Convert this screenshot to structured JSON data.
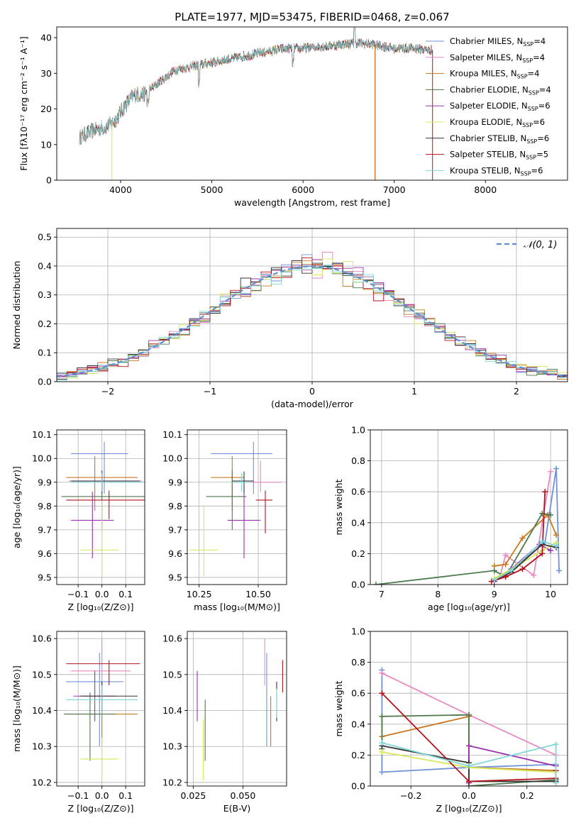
{
  "title": "PLATE=1977, MJD=53475, FIBERID=0468, z=0.067",
  "colors": {
    "chabrier_miles": "#6f93d6",
    "salpeter_miles": "#e78ac3",
    "kroupa_miles": "#c8781e",
    "chabrier_elodie": "#4c7a4c",
    "salpeter_elodie": "#9b30b0",
    "kroupa_elodie": "#d7e85a",
    "chabrier_stelib": "#333333",
    "salpeter_stelib": "#b3131b",
    "kroupa_stelib": "#7fd6d6",
    "normal_curve": "#5b8fd6",
    "grid": "#b0b0b0"
  },
  "chart_data": [
    {
      "id": "spectrum",
      "type": "line",
      "xlabel": "wavelength [Angstrom, rest frame]",
      "ylabel": "Flux [fλ10⁻¹⁷ erg cm⁻² s⁻¹ A⁻¹]",
      "xlim": [
        3300,
        8900
      ],
      "ylim": [
        0,
        43
      ],
      "xticks": [
        "4000",
        "5000",
        "6000",
        "7000",
        "8000"
      ],
      "yticks": [
        "0",
        "10",
        "20",
        "30",
        "40"
      ],
      "grid": false,
      "legend": "top-right",
      "legend_entries": [
        "Chabrier MILES, N_SSP=4",
        "Salpeter MILES, N_SSP=4",
        "Kroupa MILES, N_SSP=4",
        "Chabrier ELODIE, N_SSP=4",
        "Salpeter ELODIE, N_SSP=6",
        "Kroupa ELODIE, N_SSP=6",
        "Chabrier STELIB, N_SSP=6",
        "Salpeter STELIB, N_SSP=5",
        "Kroupa STELIB, N_SSP=6"
      ],
      "continuum": [
        [
          3550,
          12
        ],
        [
          3700,
          14
        ],
        [
          3850,
          15
        ],
        [
          3950,
          17
        ],
        [
          4050,
          21
        ],
        [
          4150,
          24
        ],
        [
          4250,
          24
        ],
        [
          4400,
          27
        ],
        [
          4600,
          31
        ],
        [
          4800,
          32
        ],
        [
          5000,
          33
        ],
        [
          5200,
          34
        ],
        [
          5400,
          35
        ],
        [
          5600,
          36
        ],
        [
          5800,
          37
        ],
        [
          6000,
          37
        ],
        [
          6200,
          37.5
        ],
        [
          6400,
          38
        ],
        [
          6600,
          38.5
        ],
        [
          6800,
          38
        ],
        [
          7000,
          37
        ],
        [
          7200,
          37
        ],
        [
          7400,
          36.5
        ]
      ]
    },
    {
      "id": "residuals",
      "type": "histogram",
      "xlabel": "(data-model)/error",
      "ylabel": "Normed distribution",
      "xlim": [
        -2.5,
        2.5
      ],
      "ylim": [
        0,
        0.53
      ],
      "xticks": [
        "−2",
        "−1",
        "0",
        "1",
        "2"
      ],
      "yticks": [
        "0.0",
        "0.1",
        "0.2",
        "0.3",
        "0.4",
        "0.5"
      ],
      "grid": true,
      "legend": "top-right",
      "legend_label": "𝒩(0, 1)",
      "bin_width": 0.1
    },
    {
      "id": "age_vs_z",
      "type": "errorbar",
      "xlabel": "Z [log₁₀(Z/Z⊙)]",
      "ylabel": "age  [log₁₀(age/yr)]",
      "xlim": [
        -0.19,
        0.18
      ],
      "ylim": [
        9.47,
        10.12
      ],
      "xticks": [
        "−0.1",
        "0.0",
        "0.1"
      ],
      "yticks": [
        "9.5",
        "9.6",
        "9.7",
        "9.8",
        "9.9",
        "10.0",
        "10.1"
      ],
      "grid": true,
      "points": [
        {
          "x": 0.01,
          "y": 10.02,
          "xerr": [
            0.14,
            0.1
          ],
          "yerr": [
            0.17,
            0.05
          ],
          "color": "chabrier_miles"
        },
        {
          "x": 0.0,
          "y": 9.905,
          "xerr": [
            0.14,
            0.17
          ],
          "yerr": [
            0.04,
            0.04
          ],
          "color": "salpeter_miles"
        },
        {
          "x": -0.03,
          "y": 9.92,
          "xerr": [
            0.12,
            0.18
          ],
          "yerr": [
            0.14,
            0.09
          ],
          "color": "kroupa_miles"
        },
        {
          "x": 0.0,
          "y": 9.84,
          "xerr": [
            0.17,
            0.2
          ],
          "yerr": [
            0.14,
            0.11
          ],
          "color": "chabrier_elodie"
        },
        {
          "x": -0.04,
          "y": 9.74,
          "xerr": [
            0.09,
            0.09
          ],
          "yerr": [
            0.16,
            0.12
          ],
          "color": "salpeter_elodie"
        },
        {
          "x": 0.0,
          "y": 9.615,
          "xerr": [
            0.09,
            0.07
          ],
          "yerr": [
            0.11,
            0.21
          ],
          "color": "kroupa_elodie"
        },
        {
          "x": 0.0,
          "y": 9.905,
          "xerr": [
            0.13,
            0.16
          ],
          "yerr": [
            0.05,
            0.04
          ],
          "color": "chabrier_stelib"
        },
        {
          "x": 0.03,
          "y": 9.825,
          "xerr": [
            0.18,
            0.15
          ],
          "yerr": [
            0.08,
            0.04
          ],
          "color": "salpeter_stelib"
        },
        {
          "x": 0.0,
          "y": 9.9,
          "xerr": [
            0.13,
            0.18
          ],
          "yerr": [
            0.04,
            0.04
          ],
          "color": "kroupa_stelib"
        }
      ]
    },
    {
      "id": "age_vs_mass",
      "type": "errorbar",
      "xlabel": "mass [log₁₀(M/M⊙)]",
      "ylabel": "",
      "xlim": [
        10.2,
        10.62
      ],
      "ylim": [
        9.47,
        10.12
      ],
      "xticks": [
        "10.25",
        "10.50"
      ],
      "yticks": [
        "9.5",
        "9.6",
        "9.7",
        "9.8",
        "9.9",
        "10.0",
        "10.1"
      ],
      "grid": true,
      "points": [
        {
          "x": 10.48,
          "y": 10.02,
          "xerr": [
            0.18,
            0.08
          ],
          "yerr": [
            0.17,
            0.05
          ],
          "color": "chabrier_miles"
        },
        {
          "x": 10.51,
          "y": 9.9,
          "xerr": [
            0.04,
            0.09
          ],
          "yerr": [
            0.04,
            0.09
          ],
          "color": "salpeter_miles"
        },
        {
          "x": 10.39,
          "y": 9.92,
          "xerr": [
            0.09,
            0.05
          ],
          "yerr": [
            0.14,
            0.09
          ],
          "color": "kroupa_miles"
        },
        {
          "x": 10.39,
          "y": 9.84,
          "xerr": [
            0.11,
            0.06
          ],
          "yerr": [
            0.14,
            0.11
          ],
          "color": "chabrier_elodie"
        },
        {
          "x": 10.44,
          "y": 9.74,
          "xerr": [
            0.07,
            0.07
          ],
          "yerr": [
            0.16,
            0.12
          ],
          "color": "salpeter_elodie"
        },
        {
          "x": 10.27,
          "y": 9.615,
          "xerr": [
            0.06,
            0.06
          ],
          "yerr": [
            0.11,
            0.19
          ],
          "color": "kroupa_elodie"
        },
        {
          "x": 10.44,
          "y": 9.905,
          "xerr": [
            0.05,
            0.04
          ],
          "yerr": [
            0.05,
            0.04
          ],
          "color": "chabrier_stelib"
        },
        {
          "x": 10.53,
          "y": 9.825,
          "xerr": [
            0.04,
            0.03
          ],
          "yerr": [
            0.14,
            0.04
          ],
          "color": "salpeter_stelib"
        },
        {
          "x": 10.43,
          "y": 9.9,
          "xerr": [
            0.04,
            0.04
          ],
          "yerr": [
            0.04,
            0.04
          ],
          "color": "kroupa_stelib"
        }
      ]
    },
    {
      "id": "mass_weight_vs_age",
      "type": "line",
      "xlabel": "age  [log₁₀(age/yr)]",
      "ylabel": "mass weight",
      "xlim": [
        6.8,
        10.3
      ],
      "ylim": [
        0,
        1.0
      ],
      "xticks": [
        "7",
        "8",
        "9",
        "10"
      ],
      "yticks": [
        "0.0",
        "0.2",
        "0.4",
        "0.6",
        "0.8",
        "1.0"
      ],
      "grid": true,
      "series": [
        {
          "color": "chabrier_miles",
          "x": [
            9.0,
            9.3,
            9.9,
            10.1,
            10.15
          ],
          "y": [
            0.02,
            0.1,
            0.27,
            0.75,
            0.09
          ]
        },
        {
          "color": "salpeter_miles",
          "x": [
            9.1,
            9.2,
            9.7,
            10.0
          ],
          "y": [
            0.05,
            0.19,
            0.06,
            0.73
          ]
        },
        {
          "color": "kroupa_miles",
          "x": [
            9.0,
            9.2,
            9.5,
            9.95,
            10.1
          ],
          "y": [
            0.12,
            0.13,
            0.3,
            0.45,
            0.32
          ]
        },
        {
          "color": "chabrier_elodie",
          "x": [
            6.9,
            9.0,
            9.2,
            9.85,
            10.0
          ],
          "y": [
            0.0,
            0.09,
            0.05,
            0.46,
            0.45
          ]
        },
        {
          "color": "salpeter_elodie",
          "x": [
            9.0,
            9.3,
            9.8,
            10.0
          ],
          "y": [
            0.02,
            0.1,
            0.26,
            0.22
          ]
        },
        {
          "color": "kroupa_elodie",
          "x": [
            9.0,
            9.4,
            9.85,
            10.1
          ],
          "y": [
            0.04,
            0.12,
            0.22,
            0.27
          ]
        },
        {
          "color": "chabrier_stelib",
          "x": [
            9.0,
            9.3,
            9.85,
            10.1
          ],
          "y": [
            0.03,
            0.08,
            0.26,
            0.24
          ]
        },
        {
          "color": "salpeter_stelib",
          "x": [
            8.95,
            9.2,
            9.5,
            9.85,
            9.9
          ],
          "y": [
            0.02,
            0.05,
            0.1,
            0.2,
            0.6
          ]
        },
        {
          "color": "kroupa_stelib",
          "x": [
            9.0,
            9.3,
            9.85,
            10.1
          ],
          "y": [
            0.03,
            0.09,
            0.28,
            0.25
          ]
        }
      ]
    },
    {
      "id": "mass_vs_z",
      "type": "errorbar",
      "xlabel": "Z [log₁₀(Z/Z⊙)]",
      "ylabel": "mass [log₁₀(M/M⊙)]",
      "xlim": [
        -0.19,
        0.18
      ],
      "ylim": [
        10.19,
        10.62
      ],
      "xticks": [
        "−0.1",
        "0.0",
        "0.1"
      ],
      "yticks": [
        "10.2",
        "10.3",
        "10.4",
        "10.5",
        "10.6"
      ],
      "grid": true,
      "points": [
        {
          "x": -0.01,
          "y": 10.48,
          "xerr": [
            0.14,
            0.1
          ],
          "yerr": [
            0.18,
            0.08
          ],
          "color": "chabrier_miles"
        },
        {
          "x": 0.0,
          "y": 10.51,
          "xerr": [
            0.13,
            0.12
          ],
          "yerr": [
            0.04,
            0.09
          ],
          "color": "salpeter_miles"
        },
        {
          "x": 0.0,
          "y": 10.39,
          "xerr": [
            0.15,
            0.15
          ],
          "yerr": [
            0.09,
            0.05
          ],
          "color": "kroupa_miles"
        },
        {
          "x": -0.05,
          "y": 10.39,
          "xerr": [
            0.11,
            0.11
          ],
          "yerr": [
            0.13,
            0.06
          ],
          "color": "chabrier_elodie"
        },
        {
          "x": -0.03,
          "y": 10.44,
          "xerr": [
            0.09,
            0.09
          ],
          "yerr": [
            0.07,
            0.07
          ],
          "color": "salpeter_elodie"
        },
        {
          "x": 0.0,
          "y": 10.265,
          "xerr": [
            0.09,
            0.07
          ],
          "yerr": [
            0.06,
            0.06
          ],
          "color": "kroupa_elodie"
        },
        {
          "x": 0.0,
          "y": 10.44,
          "xerr": [
            0.09,
            0.15
          ],
          "yerr": [
            0.05,
            0.04
          ],
          "color": "chabrier_stelib"
        },
        {
          "x": 0.03,
          "y": 10.53,
          "xerr": [
            0.18,
            0.13
          ],
          "yerr": [
            0.06,
            0.01
          ],
          "color": "salpeter_stelib"
        },
        {
          "x": 0.0,
          "y": 10.43,
          "xerr": [
            0.15,
            0.15
          ],
          "yerr": [
            0.04,
            0.04
          ],
          "color": "kroupa_stelib"
        }
      ]
    },
    {
      "id": "mass_vs_ebv",
      "type": "errorbar",
      "xlabel": "E(B-V)",
      "ylabel": "",
      "xlim": [
        0.022,
        0.072
      ],
      "ylim": [
        10.19,
        10.62
      ],
      "xticks": [
        "0.025",
        "0.050"
      ],
      "yticks": [
        "10.2",
        "10.3",
        "10.4",
        "10.5",
        "10.6"
      ],
      "grid": true,
      "points": [
        {
          "x": 0.062,
          "y": 10.48,
          "yerr": [
            0.18,
            0.08
          ],
          "color": "chabrier_miles"
        },
        {
          "x": 0.061,
          "y": 10.51,
          "yerr": [
            0.04,
            0.09
          ],
          "color": "salpeter_miles"
        },
        {
          "x": 0.064,
          "y": 10.39,
          "yerr": [
            0.09,
            0.05
          ],
          "color": "kroupa_miles"
        },
        {
          "x": 0.031,
          "y": 10.39,
          "yerr": [
            0.13,
            0.04
          ],
          "color": "chabrier_elodie"
        },
        {
          "x": 0.027,
          "y": 10.44,
          "yerr": [
            0.07,
            0.07
          ],
          "color": "salpeter_elodie"
        },
        {
          "x": 0.03,
          "y": 10.265,
          "yerr": [
            0.06,
            0.11
          ],
          "color": "kroupa_elodie"
        },
        {
          "x": 0.067,
          "y": 10.42,
          "yerr": [
            0.05,
            0.06
          ],
          "color": "chabrier_stelib"
        },
        {
          "x": 0.07,
          "y": 10.49,
          "yerr": [
            0.04,
            0.05
          ],
          "color": "salpeter_stelib"
        },
        {
          "x": 0.067,
          "y": 10.42,
          "yerr": [
            0.04,
            0.04
          ],
          "color": "kroupa_stelib"
        }
      ]
    },
    {
      "id": "mass_weight_vs_z",
      "type": "line",
      "xlabel": "Z [log₁₀(Z/Z⊙)]",
      "ylabel": "mass weight",
      "xlim": [
        -0.34,
        0.34
      ],
      "ylim": [
        0,
        1.0
      ],
      "xticks": [
        "−0.2",
        "0.0",
        "0.2"
      ],
      "yticks": [
        "0.0",
        "0.2",
        "0.4",
        "0.6",
        "0.8",
        "1.0"
      ],
      "grid": true,
      "series": [
        {
          "color": "chabrier_miles",
          "x": [
            -0.3,
            -0.3,
            0.0,
            0.3
          ],
          "y": [
            0.75,
            0.09,
            0.12,
            0.14
          ]
        },
        {
          "color": "salpeter_miles",
          "x": [
            -0.3,
            0.0,
            0.3
          ],
          "y": [
            0.73,
            0.46,
            0.2
          ]
        },
        {
          "color": "kroupa_miles",
          "x": [
            -0.3,
            0.0,
            0.0,
            0.3
          ],
          "y": [
            0.32,
            0.45,
            0.12,
            0.1
          ]
        },
        {
          "color": "chabrier_elodie",
          "x": [
            -0.3,
            -0.3,
            0.0,
            0.0,
            0.3
          ],
          "y": [
            0.24,
            0.45,
            0.46,
            0.0,
            0.04
          ]
        },
        {
          "color": "salpeter_elodie",
          "x": [
            0.0,
            0.0,
            0.3
          ],
          "y": [
            0.02,
            0.26,
            0.13
          ]
        },
        {
          "color": "kroupa_elodie",
          "x": [
            -0.3,
            0.0,
            0.3
          ],
          "y": [
            0.22,
            0.12,
            0.09
          ]
        },
        {
          "color": "chabrier_stelib",
          "x": [
            -0.3,
            0.0,
            0.0,
            0.3
          ],
          "y": [
            0.26,
            0.15,
            0.03,
            0.03
          ]
        },
        {
          "color": "salpeter_stelib",
          "x": [
            -0.3,
            0.0,
            0.3,
            0.3
          ],
          "y": [
            0.6,
            0.03,
            0.05,
            0.1
          ]
        },
        {
          "color": "kroupa_stelib",
          "x": [
            -0.3,
            0.0,
            0.3,
            0.3
          ],
          "y": [
            0.28,
            0.13,
            0.27,
            0.02
          ]
        }
      ]
    }
  ]
}
